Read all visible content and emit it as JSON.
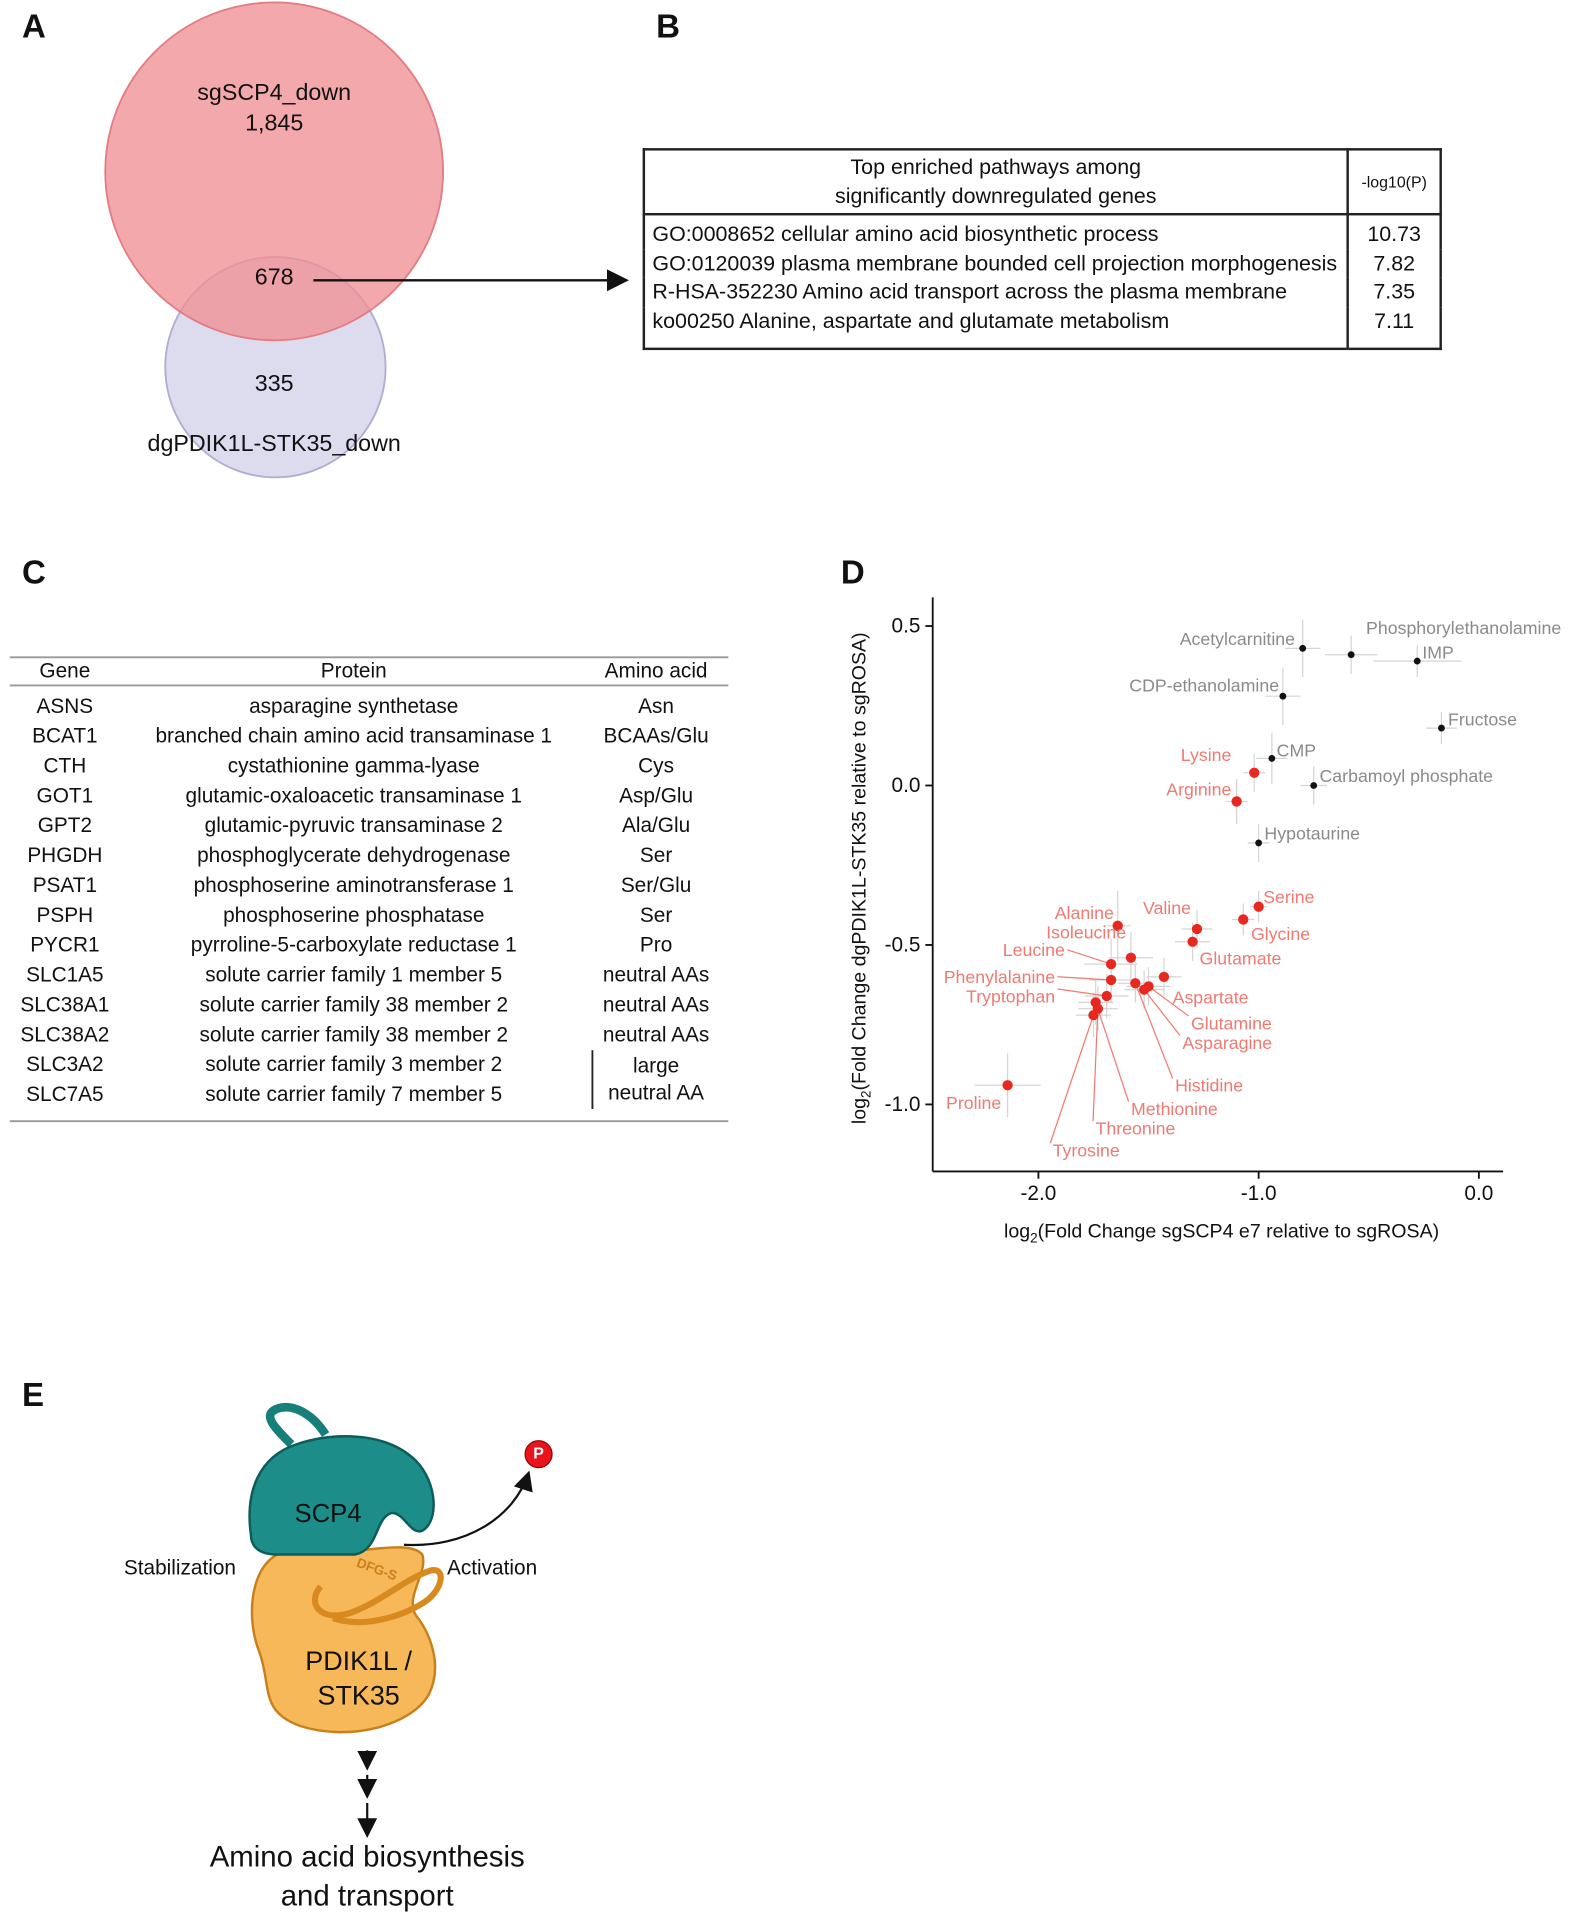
{
  "panels": {
    "a": "A",
    "b": "B",
    "c": "C",
    "d": "D",
    "e": "E"
  },
  "venn": {
    "set1": {
      "name": "sgSCP4_down",
      "count": "1,845"
    },
    "overlap": "678",
    "set2": {
      "name": "dgPDIK1L-STK35_down",
      "count": "335"
    }
  },
  "pathways": {
    "header": {
      "title": [
        "Top enriched pathways among",
        "significantly downregulated genes"
      ],
      "score": "-log10(P)"
    },
    "rows": [
      [
        "GO:0008652 cellular amino acid biosynthetic process",
        "10.73"
      ],
      [
        "GO:0120039 plasma membrane bounded cell projection morphogenesis",
        "7.82"
      ],
      [
        "R-HSA-352230 Amino acid transport across the plasma membrane",
        "7.35"
      ],
      [
        "ko00250 Alanine, aspartate and glutamate metabolism",
        "7.11"
      ]
    ]
  },
  "genes": {
    "header": [
      "Gene",
      "Protein",
      "Amino acid"
    ],
    "rows": [
      [
        "ASNS",
        "asparagine synthetase",
        "Asn"
      ],
      [
        "BCAT1",
        "branched chain amino acid transaminase 1",
        "BCAAs/Glu"
      ],
      [
        "CTH",
        "cystathionine gamma-lyase",
        "Cys"
      ],
      [
        "GOT1",
        "glutamic-oxaloacetic transaminase 1",
        "Asp/Glu"
      ],
      [
        "GPT2",
        "glutamic-pyruvic transaminase 2",
        "Ala/Glu"
      ],
      [
        "PHGDH",
        "phosphoglycerate dehydrogenase",
        "Ser"
      ],
      [
        "PSAT1",
        "phosphoserine aminotransferase 1",
        "Ser/Glu"
      ],
      [
        "PSPH",
        "phosphoserine phosphatase",
        "Ser"
      ],
      [
        "PYCR1",
        "pyrroline-5-carboxylate reductase 1",
        "Pro"
      ],
      [
        "SLC1A5",
        "solute carrier family 1 member 5",
        "neutral AAs"
      ],
      [
        "SLC38A1",
        "solute carrier family 38 member 2",
        "neutral AAs"
      ],
      [
        "SLC38A2",
        "solute carrier family 38 member 2",
        "neutral AAs"
      ],
      [
        "SLC3A2",
        "solute carrier family 3 member 2"
      ],
      [
        "SLC7A5",
        "solute carrier family 7 member 5"
      ]
    ],
    "group_label": [
      "large",
      "neutral AA"
    ]
  },
  "chart_data": {
    "type": "scatter",
    "x_label": {
      "text": "log",
      "sub": "2",
      "rest": "(Fold Change sgSCP4 e7 relative to sgROSA)"
    },
    "y_label": {
      "text": "log",
      "sub": "2",
      "rest": "(Fold Change dgPDIK1L-STK35 relative to sgROSA)"
    },
    "xlim": [
      -2.48,
      0.11
    ],
    "ylim": [
      -1.21,
      0.59
    ],
    "xticks": [
      {
        "value": -2,
        "label": "-2.0"
      },
      {
        "value": -1,
        "label": "-1.0"
      },
      {
        "value": 0,
        "label": "0.0"
      }
    ],
    "yticks": [
      0.5,
      {
        "value": 0,
        "label": "0.0"
      },
      -0.5,
      {
        "value": -1,
        "label": "-1.0"
      }
    ],
    "series": [
      {
        "color": "#111111",
        "label_color": "#8a8a8a",
        "labels": [
          "Acetylcarnitine",
          "Phosphorylethanolamine",
          "IMP",
          "CDP-ethanolamine",
          "Fructose",
          "CMP",
          "Carbamoyl phosphate",
          "Hypotaurine"
        ],
        "x": [
          -0.8,
          -0.58,
          -0.28,
          -0.89,
          -0.17,
          -0.94,
          -0.75,
          -1.0
        ],
        "values": [
          0.43,
          0.41,
          0.39,
          0.28,
          0.18,
          0.085,
          0.0,
          -0.18
        ],
        "xerr": [
          0.08,
          0.12,
          0.2,
          0.08,
          0.07,
          0.07,
          0.06,
          0.05
        ],
        "yerr": [
          0.09,
          0.06,
          0.05,
          0.09,
          0.05,
          0.08,
          0.06,
          0.06
        ]
      },
      {
        "color": "#e8281e",
        "label_color": "#f07a72",
        "labels": [
          "Lysine",
          "Arginine",
          "Serine",
          "Glycine",
          "Valine",
          "Glutamate",
          "Alanine",
          "Isoleucine",
          "Leucine",
          "Phenylalanine",
          "Aspartate",
          "Glutamine",
          "Asparagine",
          "Histidine",
          "Tryptophan",
          "Methionine",
          "Threonine",
          "Tyrosine",
          "Proline"
        ],
        "x": [
          -1.02,
          -1.1,
          -1.0,
          -1.07,
          -1.28,
          -1.3,
          -1.64,
          -1.58,
          -1.67,
          -1.67,
          -1.43,
          -1.5,
          -1.52,
          -1.56,
          -1.69,
          -1.74,
          -1.73,
          -1.75,
          -2.14
        ],
        "values": [
          0.04,
          -0.05,
          -0.38,
          -0.42,
          -0.45,
          -0.49,
          -0.44,
          -0.54,
          -0.56,
          -0.61,
          -0.6,
          -0.63,
          -0.64,
          -0.62,
          -0.66,
          -0.68,
          -0.7,
          -0.72,
          -0.94
        ],
        "xerr": [
          0.05,
          0.05,
          0.04,
          0.05,
          0.07,
          0.08,
          0.06,
          0.1,
          0.12,
          0.1,
          0.08,
          0.1,
          0.09,
          0.08,
          0.1,
          0.08,
          0.09,
          0.08,
          0.15
        ],
        "yerr": [
          0.06,
          0.07,
          0.05,
          0.05,
          0.06,
          0.06,
          0.11,
          0.08,
          0.08,
          0.07,
          0.06,
          0.06,
          0.06,
          0.06,
          0.07,
          0.07,
          0.07,
          0.07,
          0.1
        ]
      }
    ]
  },
  "diagram": {
    "scp4": "SCP4",
    "stabilization": "Stabilization",
    "activation": "Activation",
    "motif": "DFG-S",
    "phospho": "P",
    "kinase": [
      "PDIK1L /",
      "STK35"
    ],
    "outcome": [
      "Amino acid biosynthesis",
      "and transport"
    ]
  }
}
